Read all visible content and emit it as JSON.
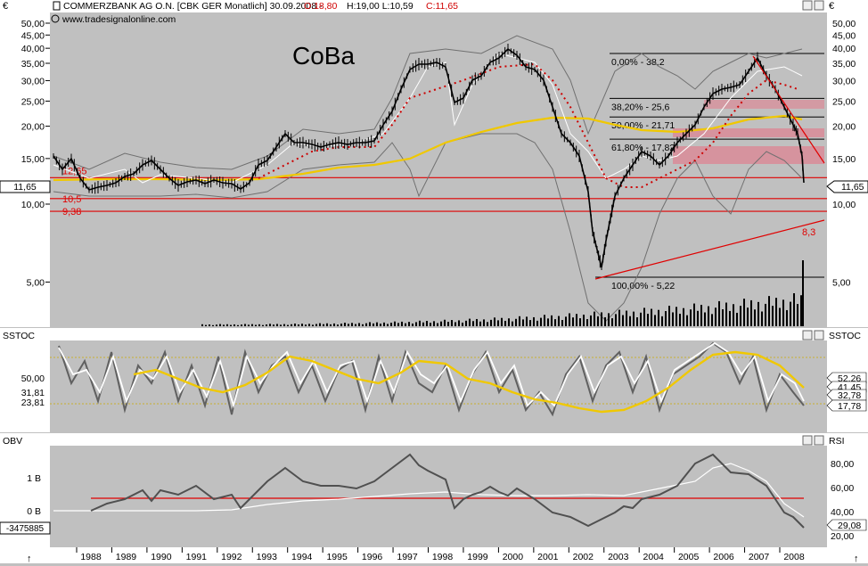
{
  "header": {
    "currency_left": "€",
    "currency_right": "€",
    "symbol_title": "COMMERZBANK AG O.N. [CBK GER  Monatlich] 30.09.2008 - ",
    "open_label": "O:18,80",
    "high_low_label": "H:19,00 L:10,59",
    "close_label": "C:11,65",
    "website": "www.tradesignalonline.com",
    "annotation": "CoBa"
  },
  "colors": {
    "panel_bg": "#ffffff",
    "chart_bg": "#c0c0c0",
    "support_red": "#e00000",
    "ma_yellow": "#f0c800",
    "band_gray": "#707070",
    "price_white": "#ffffff",
    "fib_zone": "#e08090",
    "accent_title_red": "#d00000"
  },
  "price_panel": {
    "left_ticks": [
      "50,00",
      "45,00",
      "40,00",
      "35,00",
      "30,00",
      "25,00",
      "20,00",
      "15,00",
      "10,00",
      "5,00"
    ],
    "right_ticks": [
      "50,00",
      "45,00",
      "40,00",
      "35,00",
      "30,00",
      "25,00",
      "20,00",
      "15,00",
      "10,00",
      "5,00"
    ],
    "last_price_left": "11,65",
    "last_price_right": "11,65",
    "support_labels": [
      "12,65",
      "10,5",
      "9,38"
    ],
    "trend_target_label": "8,3",
    "fib_labels": [
      "0,00% - 38,2",
      "38,20% - 25,6",
      "50,00% - 21,71",
      "61,80% - 17,82",
      "100,00% - 5,22"
    ]
  },
  "sstoc_panel": {
    "title_left": "SSTOC",
    "title_right": "SSTOC",
    "left_ticks": [
      "50,00",
      "31,81",
      "23,81"
    ],
    "right_values": [
      "52,26",
      "41,45",
      "32,78",
      "17,78"
    ]
  },
  "obv_panel": {
    "title_left": "OBV",
    "title_right": "RSI",
    "left_ticks": [
      "1 B",
      "0 B"
    ],
    "last_obv": "-3475885",
    "right_ticks": [
      "80,00",
      "60,00",
      "40,00",
      "20,00"
    ],
    "right_values": [
      "29,08"
    ]
  },
  "x_axis": {
    "years": [
      "1988",
      "1989",
      "1990",
      "1991",
      "1992",
      "1993",
      "1994",
      "1995",
      "1996",
      "1997",
      "1998",
      "1999",
      "2000",
      "2001",
      "2002",
      "2003",
      "2004",
      "2005",
      "2006",
      "2007",
      "2008"
    ]
  },
  "chart_data": {
    "type": "line",
    "title": "COMMERZBANK AG O.N. [CBK GER  Monatlich] 30.09.2008",
    "x": [
      1987.5,
      1988,
      1989,
      1990,
      1991,
      1992,
      1993,
      1994,
      1995,
      1996,
      1997,
      1998,
      1999,
      2000,
      2001,
      2002,
      2003,
      2004,
      2005,
      2006,
      2007,
      2008,
      2008.75
    ],
    "series": [
      {
        "values": [
          13.5,
          12.0,
          11.5,
          14.0,
          12.0,
          11.0,
          13.0,
          17.0,
          16.0,
          16.5,
          28.0,
          36.0,
          28.0,
          42.0,
          28.0,
          10.0,
          6.0,
          14.0,
          17.0,
          25.0,
          35.0,
          22.0,
          11.65
        ]
      }
    ],
    "ohlc_last": {
      "open": 18.8,
      "high": 19.0,
      "low": 10.59,
      "close": 11.65
    },
    "support_levels": [
      12.65,
      10.5,
      9.38
    ],
    "fibonacci": [
      {
        "pct": "0,00%",
        "value": 38.2
      },
      {
        "pct": "38,20%",
        "value": 25.6
      },
      {
        "pct": "50,00%",
        "value": 21.71
      },
      {
        "pct": "61,80%",
        "value": 17.82
      },
      {
        "pct": "100,00%",
        "value": 5.22
      }
    ],
    "trend_target": 8.3,
    "y_scale": "log",
    "ylim": [
      4,
      55
    ],
    "indicators": {
      "sstoc": {
        "ylim": [
          0,
          100
        ],
        "values": [
          52.26,
          41.45,
          32.78,
          17.78
        ]
      },
      "rsi": {
        "ylim": [
          15,
          95
        ],
        "value": 29.08
      }
    }
  }
}
